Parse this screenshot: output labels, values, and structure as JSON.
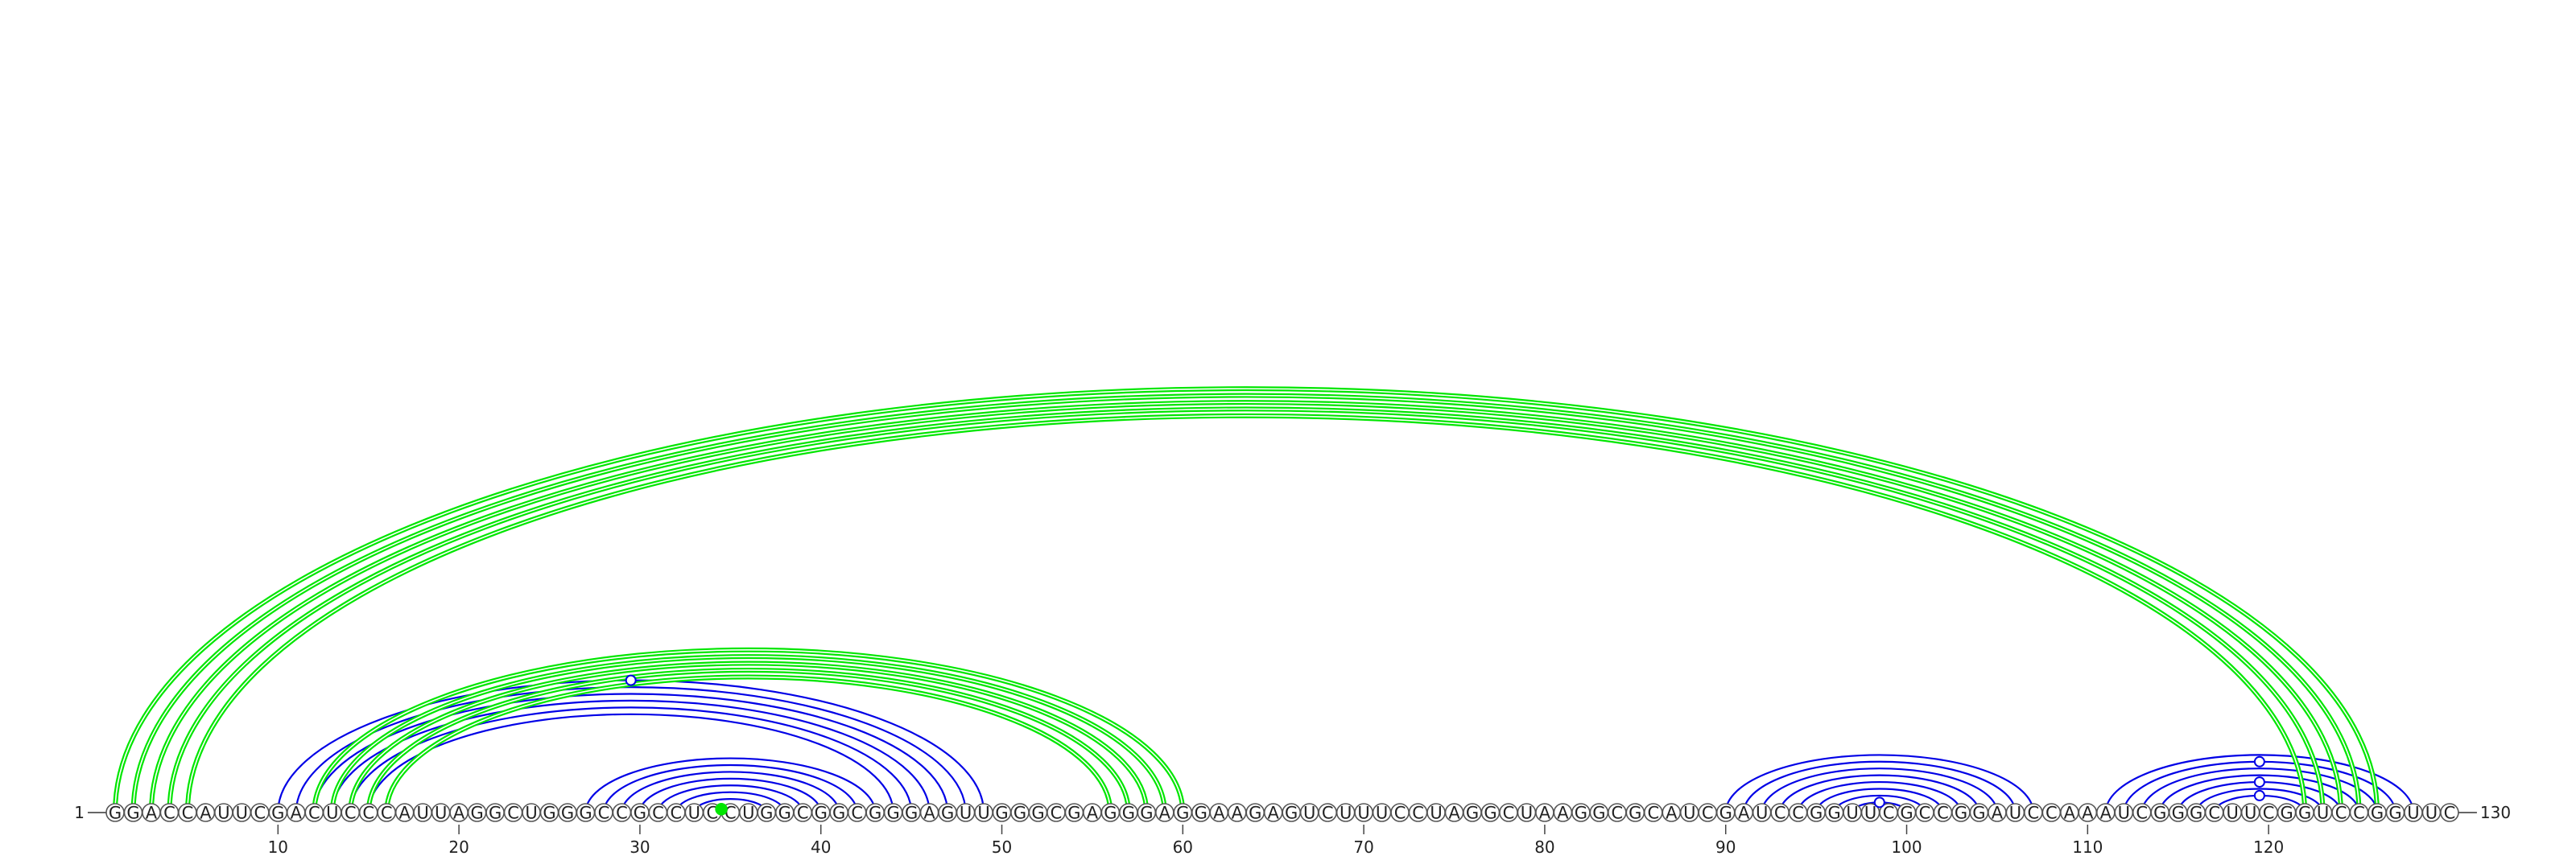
{
  "sequence": "GGACCAUUCGACUCCCAUUAGGCUGGGCCGCCUCCUGGCGGCGGGAGUUGGGCGAGGGAGGAAGAGUCUUUCCUAGGCUAAGGCGCAUCGAUCCGGUUCGCCGGAUCCAAAUCGGGCUUCGGUCCGGUUC",
  "start_label": "1",
  "end_label": "130",
  "tick_positions": [
    10,
    20,
    30,
    40,
    50,
    60,
    70,
    80,
    90,
    100,
    110,
    120
  ],
  "tick_labels": [
    "10",
    "20",
    "30",
    "40",
    "50",
    "60",
    "70",
    "80",
    "90",
    "100",
    "110",
    "120"
  ],
  "colors": {
    "pair_blue": "#0000e6",
    "pair_green": "#00e600"
  },
  "chart_data": {
    "type": "arc",
    "title": "",
    "blue_pairs": [
      [
        10,
        49
      ],
      [
        11,
        48
      ],
      [
        12,
        47
      ],
      [
        13,
        46
      ],
      [
        14,
        45
      ],
      [
        15,
        44
      ],
      [
        27,
        43
      ],
      [
        28,
        42
      ],
      [
        29,
        41
      ],
      [
        30,
        40
      ],
      [
        31,
        39
      ],
      [
        32,
        38
      ],
      [
        33,
        37
      ],
      [
        90,
        107
      ],
      [
        91,
        106
      ],
      [
        92,
        105
      ],
      [
        93,
        104
      ],
      [
        94,
        103
      ],
      [
        95,
        102
      ],
      [
        96,
        101
      ],
      [
        97,
        100
      ],
      [
        111,
        128
      ],
      [
        112,
        127
      ],
      [
        113,
        126
      ],
      [
        114,
        125
      ],
      [
        115,
        124
      ],
      [
        116,
        123
      ],
      [
        117,
        122
      ]
    ],
    "green_pairs": [
      [
        1,
        126
      ],
      [
        2,
        125
      ],
      [
        3,
        124
      ],
      [
        4,
        123
      ],
      [
        5,
        122
      ],
      [
        12,
        60
      ],
      [
        13,
        59
      ],
      [
        14,
        58
      ],
      [
        15,
        57
      ],
      [
        16,
        56
      ],
      [
        34,
        35
      ]
    ],
    "markers": [
      {
        "color": "blue",
        "position": 29.5,
        "near_pair": [
          10,
          49
        ]
      },
      {
        "color": "green",
        "position": 34.5,
        "near_pair": [
          34,
          35
        ]
      },
      {
        "color": "blue",
        "position": 98.5,
        "near_pair": [
          97,
          100
        ]
      },
      {
        "color": "blue",
        "position": 119.5,
        "near_pair": [
          117,
          122
        ]
      },
      {
        "color": "blue",
        "position": 119.5,
        "near_pair": [
          115,
          124
        ]
      },
      {
        "color": "blue",
        "position": 119.5,
        "near_pair": [
          112,
          127
        ]
      }
    ]
  }
}
